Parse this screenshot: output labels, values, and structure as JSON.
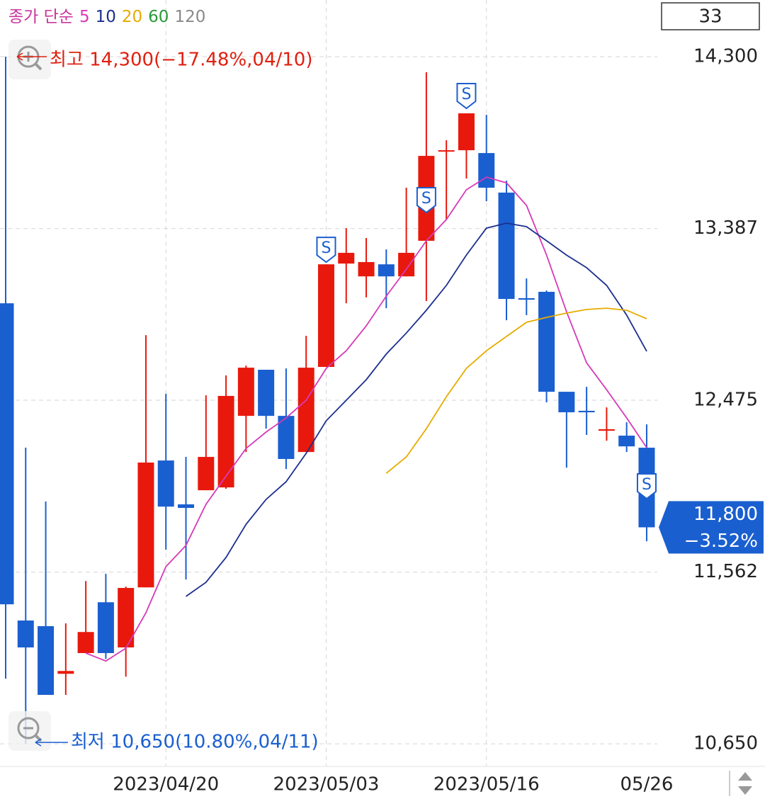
{
  "chart_data": {
    "type": "candlestick",
    "legend_title": "종가 단순",
    "visible_count": 33,
    "high_label": "최고 14,300(−17.48%,04/10)",
    "low_label": "최저 10,650(10.80%,04/11)",
    "last_price": {
      "value": 11800,
      "label": "11,800"
    },
    "last_change": "−3.52%",
    "up_color": "#e8190c",
    "down_color": "#1a5fd0",
    "categories": [
      null,
      null,
      null,
      null,
      null,
      null,
      null,
      null,
      "2023/04/20",
      null,
      null,
      null,
      null,
      null,
      null,
      null,
      "2023/05/03",
      null,
      null,
      null,
      null,
      null,
      null,
      null,
      "2023/05/16",
      null,
      null,
      null,
      null,
      null,
      null,
      null,
      "05/26"
    ],
    "open": [
      12990,
      11305,
      11275,
      11022,
      11132,
      11402,
      11162,
      11481,
      12155,
      11922,
      11997,
      12012,
      12392,
      12637,
      12392,
      12200,
      12652,
      13201,
      13133,
      13197,
      13133,
      13322,
      13796,
      13803,
      13788,
      13578,
      13017,
      13051,
      12520,
      12419,
      12313,
      12287,
      12223
    ],
    "high": [
      14300,
      12223,
      11937,
      11290,
      11515,
      11553,
      11485,
      12821,
      12509,
      12174,
      12501,
      12607,
      12659,
      12637,
      12644,
      12817,
      13197,
      13389,
      13337,
      13276,
      13604,
      14217,
      13856,
      13999,
      13991,
      13641,
      13122,
      13058,
      12520,
      12546,
      12437,
      12358,
      12347
    ],
    "low": [
      10996,
      10650,
      10910,
      10910,
      11132,
      11101,
      11007,
      11481,
      11681,
      11523,
      11997,
      12005,
      12200,
      12324,
      12110,
      12200,
      12652,
      12990,
      13021,
      12964,
      13133,
      13002,
      13435,
      13653,
      13532,
      12900,
      12927,
      12464,
      12117,
      12291,
      12260,
      12200,
      11726
    ],
    "close": [
      11391,
      11162,
      10910,
      11037,
      11244,
      11132,
      11478,
      12144,
      11910,
      11903,
      12174,
      12498,
      12648,
      12392,
      12163,
      12648,
      13197,
      13258,
      13209,
      13133,
      13258,
      13773,
      13803,
      13999,
      13604,
      13013,
      13009,
      12520,
      12411,
      12411,
      12321,
      12230,
      11800
    ],
    "moving_averages": [
      {
        "name": "5",
        "color": "#d63ab8",
        "values": [
          null,
          null,
          null,
          null,
          11132,
          11090,
          11158,
          11346,
          11591,
          11704,
          11922,
          12072,
          12219,
          12306,
          12381,
          12475,
          12644,
          12738,
          12870,
          13028,
          13171,
          13322,
          13435,
          13593,
          13660,
          13630,
          13510,
          13246,
          12945,
          12674,
          12531,
          12381,
          12223
        ]
      },
      {
        "name": "10",
        "color": "#1c2f8f",
        "values": [
          null,
          null,
          null,
          null,
          null,
          null,
          null,
          null,
          null,
          11433,
          11508,
          11640,
          11816,
          11948,
          12042,
          12193,
          12366,
          12475,
          12584,
          12720,
          12832,
          12953,
          13085,
          13246,
          13389,
          13416,
          13397,
          13322,
          13246,
          13179,
          13085,
          12927,
          12735
        ]
      },
      {
        "name": "20",
        "color": "#e6ac00",
        "values": [
          null,
          null,
          null,
          null,
          null,
          null,
          null,
          null,
          null,
          null,
          null,
          null,
          null,
          null,
          null,
          null,
          null,
          null,
          null,
          12087,
          12174,
          12324,
          12494,
          12644,
          12738,
          12814,
          12889,
          12915,
          12938,
          12957,
          12964,
          12953,
          12908
        ]
      },
      {
        "name": "60",
        "color": "#2a9a3a"
      },
      {
        "name": "120",
        "color": "#8a8a8a"
      }
    ],
    "signals": [
      {
        "index": 16,
        "price": 13276,
        "label": "S"
      },
      {
        "index": 21,
        "price": 13540,
        "label": "S"
      },
      {
        "index": 23,
        "price": 14093,
        "label": "S"
      },
      {
        "index": 32,
        "price": 12020,
        "label": "S"
      }
    ],
    "ylim": [
      10530,
      14601
    ],
    "yticks": [
      {
        "value": 14300,
        "label": "14,300"
      },
      {
        "value": 13387,
        "label": "13,387"
      },
      {
        "value": 12475,
        "label": "12,475"
      },
      {
        "value": 11562,
        "label": "11,562"
      },
      {
        "value": 10650,
        "label": "10,650"
      }
    ],
    "grid": true
  }
}
